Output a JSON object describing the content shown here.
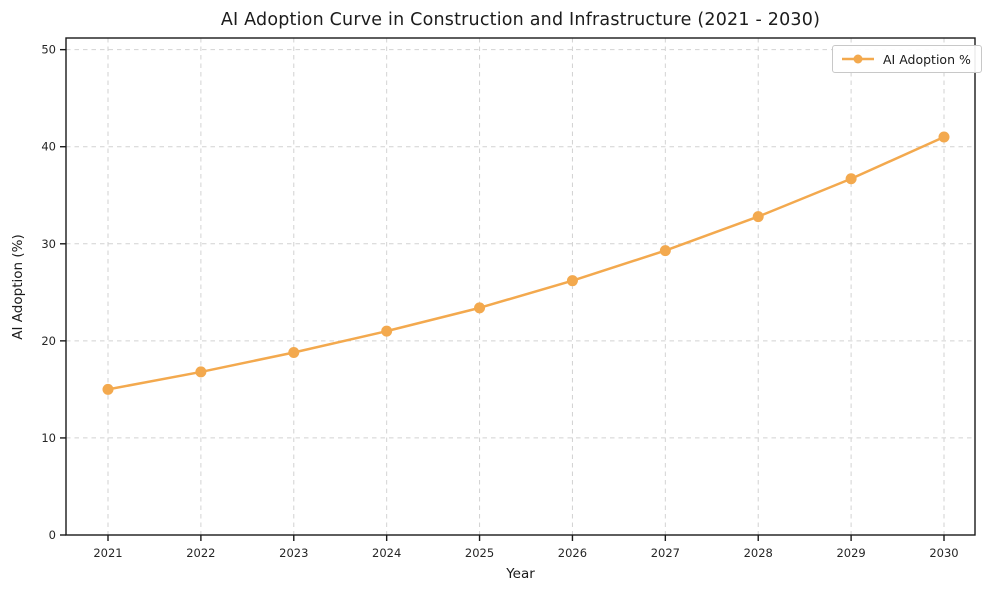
{
  "chart_data": {
    "type": "line",
    "title": "AI Adoption Curve in Construction and Infrastructure (2021 - 2030)",
    "xlabel": "Year",
    "ylabel": "AI Adoption (%)",
    "categories": [
      "2021",
      "2022",
      "2023",
      "2024",
      "2025",
      "2026",
      "2027",
      "2028",
      "2029",
      "2030"
    ],
    "series": [
      {
        "name": "AI Adoption %",
        "values": [
          15.0,
          16.8,
          18.8,
          21.0,
          23.4,
          26.2,
          29.3,
          32.8,
          36.7,
          41.0
        ],
        "color": "#F3A94E",
        "marker": "circle"
      }
    ],
    "ylim": [
      0,
      50
    ],
    "yticks": [
      0,
      10,
      20,
      30,
      40,
      50
    ],
    "grid": true,
    "grid_style": "dashed",
    "legend_position": "upper right"
  },
  "colors": {
    "background": "#ffffff",
    "line": "#F3A94E",
    "grid": "#d2d2d2",
    "axis": "#1a1a1a",
    "tick_text": "#262626",
    "title_text": "#1c1c1c",
    "legend_border": "#c8c8c8"
  }
}
